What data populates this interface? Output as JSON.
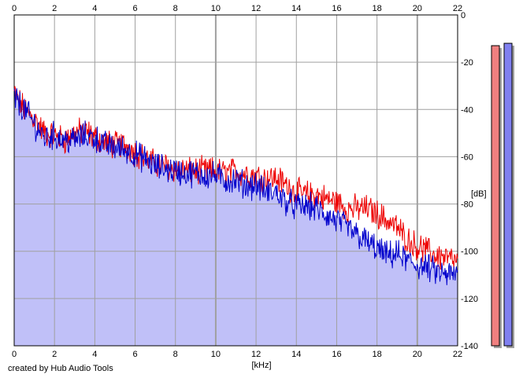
{
  "credit": "created by Hub Audio Tools",
  "chart_data": {
    "type": "area",
    "xlabel": "[kHz]",
    "ylabel": "[dB]",
    "xlim": [
      0,
      22
    ],
    "ylim": [
      -140,
      0
    ],
    "x_ticks": [
      "0",
      "2",
      "4",
      "6",
      "8",
      "10",
      "12",
      "14",
      "16",
      "18",
      "20",
      "22"
    ],
    "y_ticks": [
      "0",
      "-20",
      "-40",
      "-60",
      "-80",
      "-100",
      "-120",
      "-140"
    ],
    "grid": true,
    "colors": {
      "series_red": "#ee0000",
      "series_blue": "#0000cc",
      "fill": "#c0c0f8",
      "grid": "#a0a0a0",
      "meter_red": "#f08080",
      "meter_blue": "#8080f0"
    },
    "x": [
      0,
      0.5,
      1,
      1.5,
      2,
      2.5,
      3,
      3.5,
      4,
      4.5,
      5,
      5.5,
      6,
      6.5,
      7,
      7.5,
      8,
      8.5,
      9,
      9.5,
      10,
      10.5,
      11,
      11.5,
      12,
      12.5,
      13,
      13.5,
      14,
      14.5,
      15,
      15.5,
      16,
      16.5,
      17,
      17.5,
      18,
      18.5,
      19,
      19.5,
      20,
      20.5,
      21,
      21.5,
      22
    ],
    "series": [
      {
        "values": [
          -33,
          -40,
          -44,
          -50,
          -51,
          -53,
          -50,
          -49,
          -52,
          -54,
          -55,
          -55,
          -58,
          -61,
          -63,
          -64,
          -65,
          -66,
          -66,
          -66,
          -66,
          -67,
          -66,
          -67,
          -68,
          -69,
          -69,
          -72,
          -75,
          -76,
          -76,
          -78,
          -79,
          -82,
          -82,
          -82,
          -84,
          -87,
          -90,
          -95,
          -98,
          -100,
          -102,
          -103,
          -105
        ]
      },
      {
        "values": [
          -35,
          -40,
          -46,
          -52,
          -51,
          -53,
          -53,
          -51,
          -52,
          -55,
          -56,
          -57,
          -59,
          -61,
          -64,
          -65,
          -66,
          -67,
          -67,
          -68,
          -68,
          -70,
          -70,
          -72,
          -72,
          -75,
          -75,
          -79,
          -81,
          -81,
          -82,
          -85,
          -87,
          -90,
          -93,
          -96,
          -99,
          -102,
          -101,
          -104,
          -106,
          -107,
          -109,
          -110,
          -110
        ]
      }
    ],
    "meters": [
      {
        "level_db": -13
      },
      {
        "level_db": -12
      }
    ]
  }
}
